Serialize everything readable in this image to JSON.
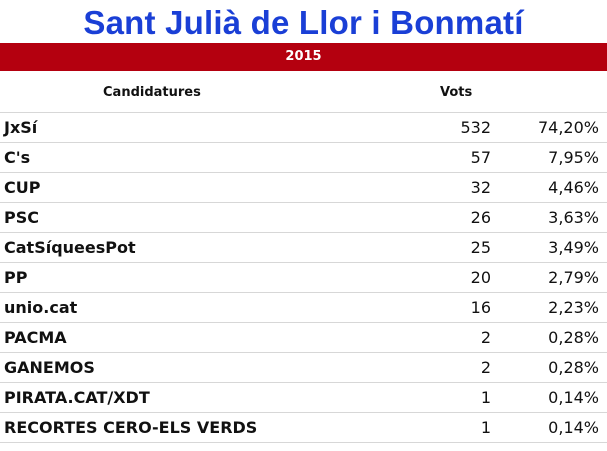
{
  "title": "Sant Julià de Llor i Bonmatí",
  "year": "2015",
  "table": {
    "headers": {
      "candidatures": "Candidatures",
      "vots": "Vots"
    },
    "rows": [
      {
        "name": "JxSí",
        "votes": "532",
        "pct": "74,20%"
      },
      {
        "name": "C's",
        "votes": "57",
        "pct": "7,95%"
      },
      {
        "name": "CUP",
        "votes": "32",
        "pct": "4,46%"
      },
      {
        "name": "PSC",
        "votes": "26",
        "pct": "3,63%"
      },
      {
        "name": "CatSíqueesPot",
        "votes": "25",
        "pct": "3,49%"
      },
      {
        "name": "PP",
        "votes": "20",
        "pct": "2,79%"
      },
      {
        "name": "unio.cat",
        "votes": "16",
        "pct": "2,23%"
      },
      {
        "name": "PACMA",
        "votes": "2",
        "pct": "0,28%"
      },
      {
        "name": "GANEMOS",
        "votes": "2",
        "pct": "0,28%"
      },
      {
        "name": "PIRATA.CAT/XDT",
        "votes": "1",
        "pct": "0,14%"
      },
      {
        "name": "RECORTES CERO-ELS VERDS",
        "votes": "1",
        "pct": "0,14%"
      }
    ]
  },
  "colors": {
    "title": "#1a3fd6",
    "year_bar": "#b4000f",
    "row_divider": "#d7d7d7"
  }
}
